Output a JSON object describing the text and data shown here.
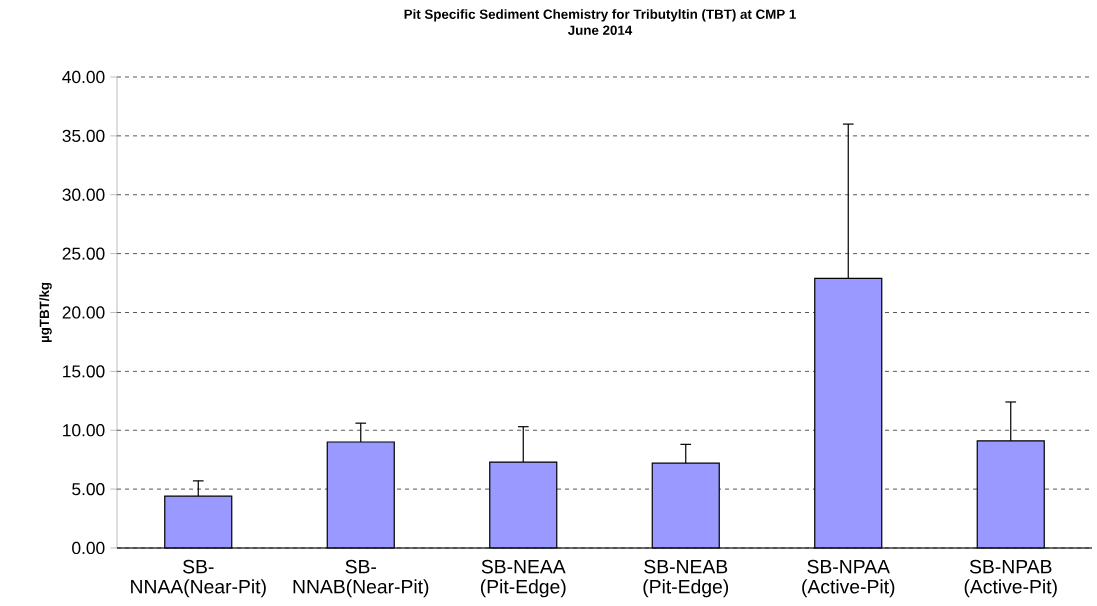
{
  "chart_data": {
    "type": "bar",
    "title": "Pit Specific Sediment Chemistry for Tributyltin (TBT) at CMP 1",
    "subtitle": "June 2014",
    "ylabel": "µgTBT/kg",
    "categories": [
      "SB-NNAA(Near-Pit)",
      "SB-NNAB(Near-Pit)",
      "SB-NEAA (Pit-Edge)",
      "SB-NEAB (Pit-Edge)",
      "SB-NPAA (Active-Pit)",
      "SB-NPAB (Active-Pit)"
    ],
    "values": [
      4.4,
      9.0,
      7.3,
      7.2,
      22.9,
      9.1
    ],
    "errors": [
      [
        4.4,
        5.7
      ],
      [
        9.0,
        10.6
      ],
      [
        7.3,
        10.3
      ],
      [
        7.2,
        8.8
      ],
      [
        22.9,
        36.0
      ],
      [
        9.1,
        12.4
      ]
    ],
    "color": "#9999ff",
    "ylim": [
      0,
      40
    ],
    "yticks": [
      {
        "value": 0,
        "label": "0.00"
      },
      {
        "value": 5,
        "label": "5.00"
      },
      {
        "value": 10,
        "label": "10.00"
      },
      {
        "value": 15,
        "label": "15.00"
      },
      {
        "value": 20,
        "label": "20.00"
      },
      {
        "value": 25,
        "label": "25.00"
      },
      {
        "value": 30,
        "label": "30.00"
      },
      {
        "value": 35,
        "label": "35.00"
      },
      {
        "value": 40,
        "label": "40.00"
      }
    ],
    "grid": "y"
  }
}
